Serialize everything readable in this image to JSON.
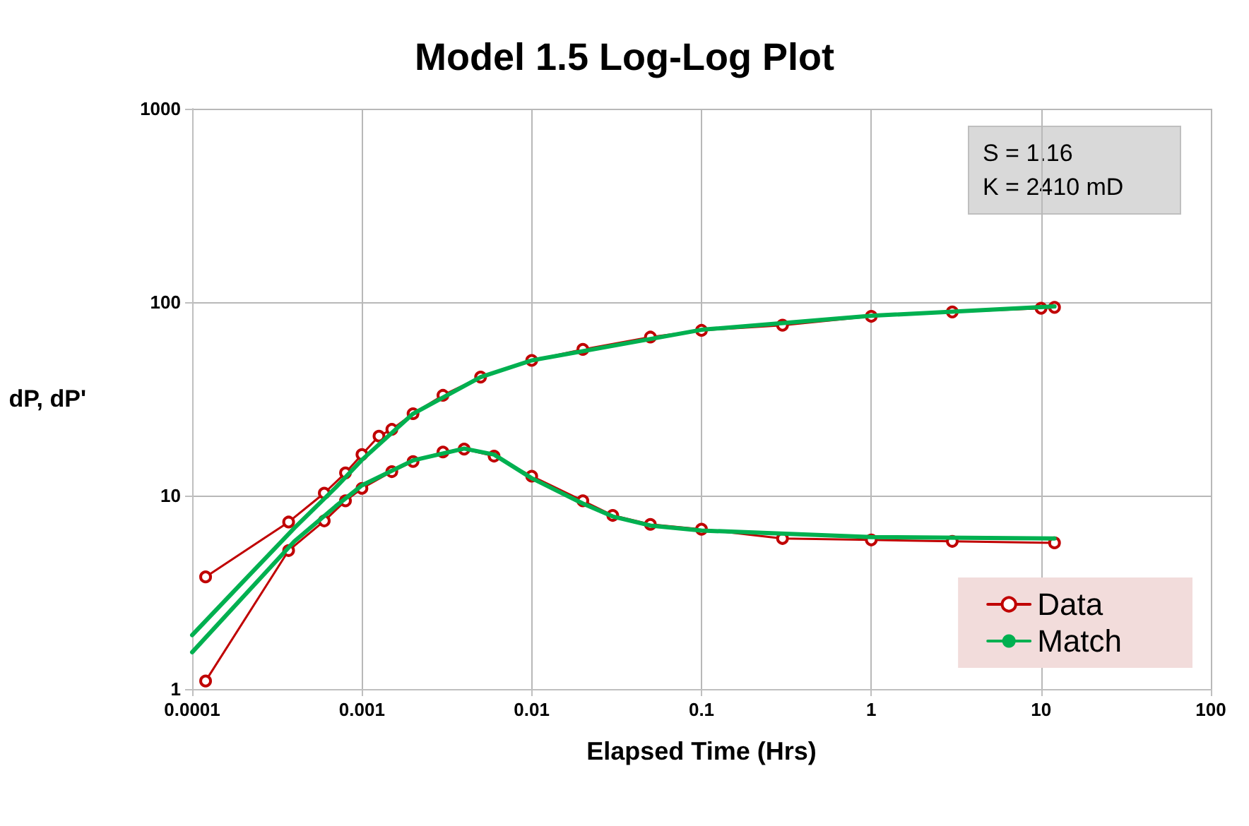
{
  "chart_data": {
    "type": "line",
    "title": "Model 1.5 Log-Log Plot",
    "xlabel": "Elapsed Time (Hrs)",
    "ylabel": "dP, dP'",
    "log": "xy",
    "grid": true,
    "legend": "bottom right",
    "xlim": [
      0.0001,
      100
    ],
    "xticks": [
      0.0001,
      0.001,
      0.01,
      0.1,
      1,
      10,
      100
    ],
    "ylim": [
      1,
      1000
    ],
    "yticks": [
      1,
      10,
      100,
      1000
    ],
    "annotations": [
      "S = 1.16",
      "K = 2410 mD"
    ],
    "series": [
      {
        "name": "Data",
        "color": "#c00000",
        "marker": "circle",
        "x": [
          0.00012,
          0.00037,
          0.0006,
          0.0008,
          0.001,
          0.00126,
          0.0015,
          0.002,
          0.003,
          0.005,
          0.01,
          0.02,
          0.05,
          0.1,
          0.3,
          1,
          3,
          10,
          12
        ],
        "values": [
          3.8,
          7.3,
          10.3,
          13.1,
          16.3,
          20.3,
          22,
          26.5,
          33,
          41,
          50,
          57,
          66,
          71.5,
          76,
          84.5,
          89,
          93,
          94
        ]
      },
      {
        "color": "#c00000",
        "marker": "circle",
        "x": [
          0.00012,
          0.00037,
          0.0006,
          0.0008,
          0.001,
          0.0015,
          0.002,
          0.003,
          0.004,
          0.006,
          0.01,
          0.02,
          0.03,
          0.05,
          0.1,
          0.3,
          1,
          3,
          12
        ],
        "values": [
          1.1,
          5.2,
          7.4,
          9.4,
          10.9,
          13.3,
          15,
          16.8,
          17.4,
          16,
          12.6,
          9.4,
          7.9,
          7.1,
          6.7,
          6,
          5.9,
          5.8,
          5.7
        ]
      },
      {
        "name": "Match",
        "color": "#00b050",
        "marker": "none",
        "x": [
          0.0001,
          0.0002,
          0.0004,
          0.0007,
          0.001,
          0.002,
          0.005,
          0.01,
          0.1,
          1,
          12
        ],
        "values": [
          1.9,
          3.6,
          6.8,
          11,
          15.3,
          26.5,
          41,
          50,
          72,
          85,
          95
        ]
      },
      {
        "color": "#00b050",
        "marker": "none",
        "x": [
          0.0001,
          0.0002,
          0.0004,
          0.0007,
          0.001,
          0.002,
          0.004,
          0.006,
          0.01,
          0.02,
          0.03,
          0.05,
          0.1,
          1,
          12
        ],
        "values": [
          1.55,
          3,
          5.8,
          8.8,
          11.3,
          15.2,
          17.5,
          16.3,
          12.3,
          9.1,
          7.8,
          7,
          6.6,
          6.1,
          6
        ]
      }
    ]
  }
}
